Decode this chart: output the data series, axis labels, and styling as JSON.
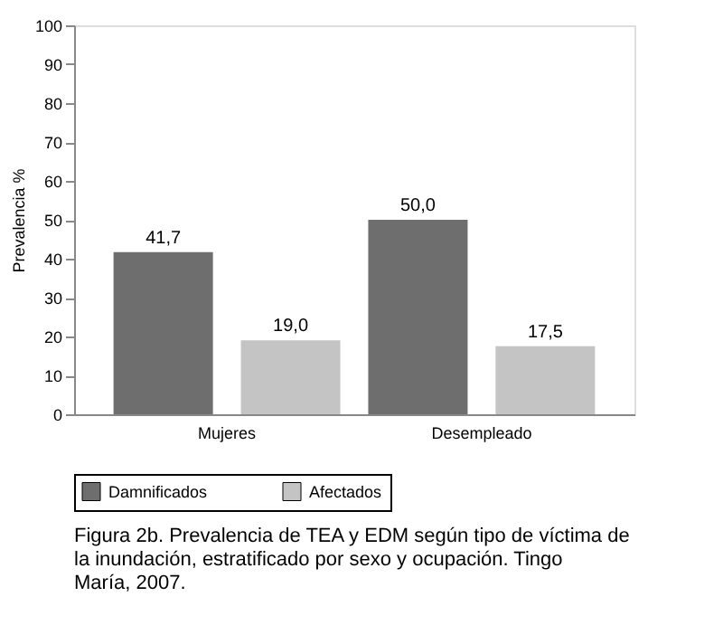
{
  "chart_data": {
    "type": "bar",
    "ylabel": "Prevalencia %",
    "categories": [
      "Mujeres",
      "Desempleado"
    ],
    "series": [
      {
        "name": "Damnificados",
        "color": "#6e6e6e",
        "values": [
          41.7,
          50.0
        ],
        "value_labels": [
          "41,7",
          "50,0"
        ]
      },
      {
        "name": "Afectados",
        "color": "#c4c4c4",
        "values": [
          19.0,
          17.5
        ],
        "value_labels": [
          "19,0",
          "17,5"
        ]
      }
    ],
    "ylim": [
      0,
      100
    ],
    "yticks": [
      0,
      10,
      20,
      30,
      40,
      50,
      60,
      70,
      80,
      90,
      100
    ],
    "grid": false,
    "legend": "bottom",
    "annotations": [
      "Figura 2b. Prevalencia de TEA y EDM según tipo de víctima de la inundación, estratificado por sexo y ocupación. Tingo María, 2007."
    ]
  }
}
